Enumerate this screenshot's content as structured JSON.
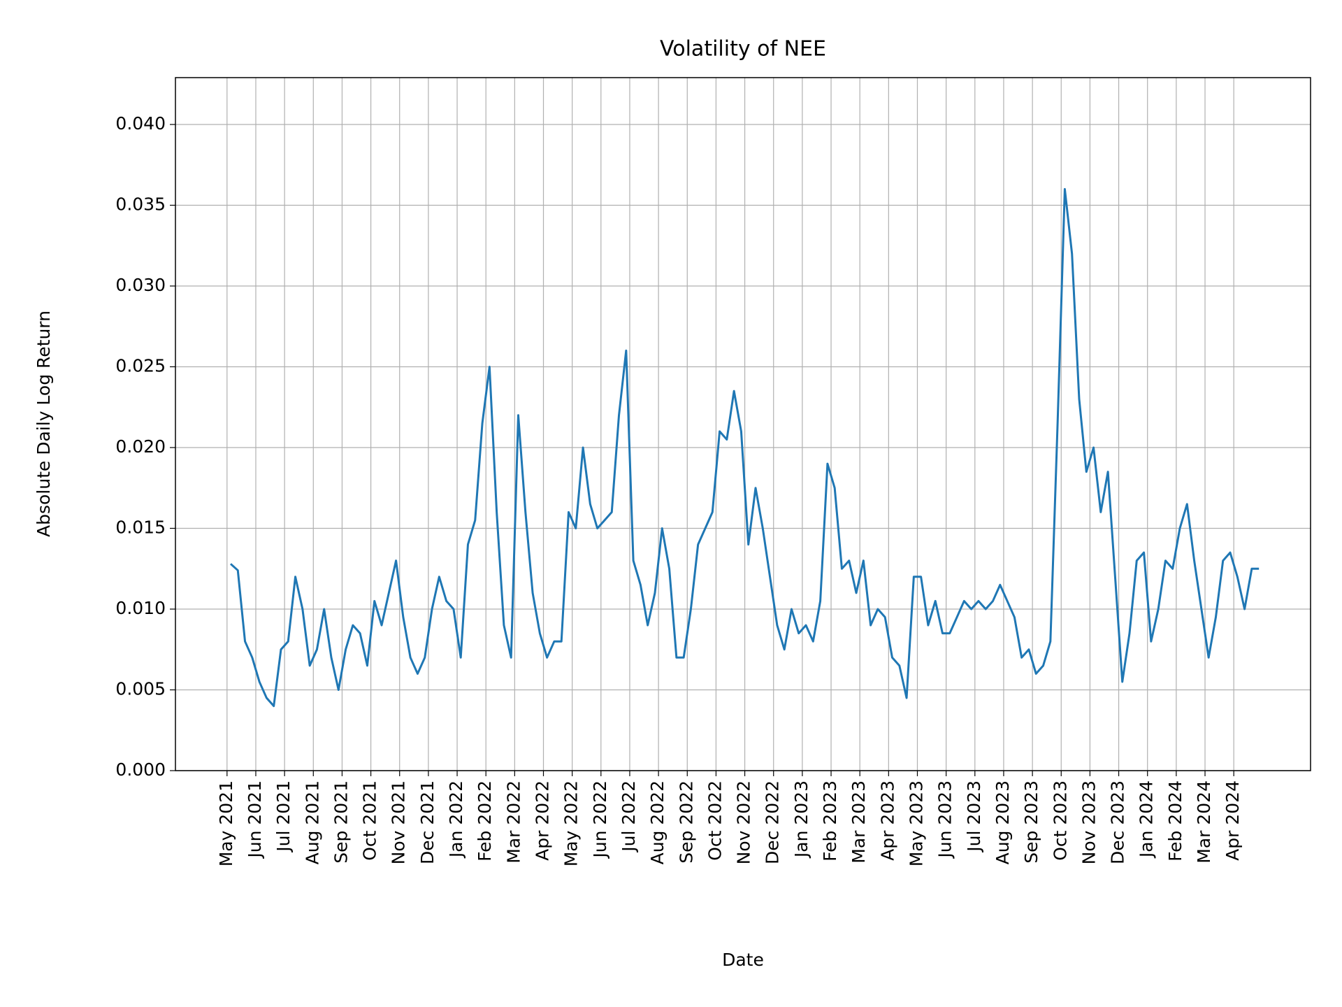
{
  "chart_data": {
    "type": "line",
    "title": "Volatility of NEE",
    "x_label": "Date",
    "y_label": "Absolute Daily Log Return",
    "color": "#1f77b4",
    "grid": true,
    "x": [
      "2021-05",
      "2021-05",
      "2021-05",
      "2021-05",
      "2021-06",
      "2021-06",
      "2021-06",
      "2021-06",
      "2021-07",
      "2021-07",
      "2021-07",
      "2021-07",
      "2021-08",
      "2021-08",
      "2021-08",
      "2021-08",
      "2021-09",
      "2021-09",
      "2021-09",
      "2021-09",
      "2021-10",
      "2021-10",
      "2021-10",
      "2021-10",
      "2021-11",
      "2021-11",
      "2021-11",
      "2021-11",
      "2021-12",
      "2021-12",
      "2021-12",
      "2021-12",
      "2022-01",
      "2022-01",
      "2022-01",
      "2022-01",
      "2022-02",
      "2022-02",
      "2022-02",
      "2022-02",
      "2022-03",
      "2022-03",
      "2022-03",
      "2022-03",
      "2022-04",
      "2022-04",
      "2022-04",
      "2022-04",
      "2022-05",
      "2022-05",
      "2022-05",
      "2022-05",
      "2022-06",
      "2022-06",
      "2022-06",
      "2022-06",
      "2022-07",
      "2022-07",
      "2022-07",
      "2022-07",
      "2022-08",
      "2022-08",
      "2022-08",
      "2022-08",
      "2022-09",
      "2022-09",
      "2022-09",
      "2022-09",
      "2022-10",
      "2022-10",
      "2022-10",
      "2022-10",
      "2022-11",
      "2022-11",
      "2022-11",
      "2022-11",
      "2022-12",
      "2022-12",
      "2022-12",
      "2022-12",
      "2023-01",
      "2023-01",
      "2023-01",
      "2023-01",
      "2023-02",
      "2023-02",
      "2023-02",
      "2023-02",
      "2023-03",
      "2023-03",
      "2023-03",
      "2023-03",
      "2023-04",
      "2023-04",
      "2023-04",
      "2023-04",
      "2023-05",
      "2023-05",
      "2023-05",
      "2023-05",
      "2023-06",
      "2023-06",
      "2023-06",
      "2023-06",
      "2023-07",
      "2023-07",
      "2023-07",
      "2023-07",
      "2023-08",
      "2023-08",
      "2023-08",
      "2023-08",
      "2023-09",
      "2023-09",
      "2023-09",
      "2023-09",
      "2023-10",
      "2023-10",
      "2023-10",
      "2023-10",
      "2023-11",
      "2023-11",
      "2023-11",
      "2023-11",
      "2023-12",
      "2023-12",
      "2023-12",
      "2023-12",
      "2024-01",
      "2024-01",
      "2024-01",
      "2024-01",
      "2024-02",
      "2024-02",
      "2024-02",
      "2024-02",
      "2024-03",
      "2024-03",
      "2024-03",
      "2024-03",
      "2024-04",
      "2024-04",
      "2024-04",
      "2024-04"
    ],
    "values": [
      0.0128,
      0.0124,
      0.008,
      0.007,
      0.0055,
      0.0045,
      0.004,
      0.0075,
      0.008,
      0.012,
      0.01,
      0.0065,
      0.0075,
      0.01,
      0.007,
      0.005,
      0.0075,
      0.009,
      0.0085,
      0.0065,
      0.0105,
      0.009,
      0.011,
      0.013,
      0.0095,
      0.007,
      0.006,
      0.007,
      0.01,
      0.012,
      0.0105,
      0.01,
      0.007,
      0.014,
      0.0155,
      0.0215,
      0.025,
      0.016,
      0.009,
      0.007,
      0.022,
      0.016,
      0.011,
      0.0085,
      0.007,
      0.008,
      0.008,
      0.016,
      0.015,
      0.02,
      0.0165,
      0.015,
      0.0155,
      0.016,
      0.022,
      0.026,
      0.013,
      0.0115,
      0.009,
      0.011,
      0.015,
      0.0125,
      0.007,
      0.007,
      0.01,
      0.014,
      0.015,
      0.016,
      0.021,
      0.0205,
      0.0235,
      0.021,
      0.014,
      0.0175,
      0.015,
      0.012,
      0.009,
      0.0075,
      0.01,
      0.0085,
      0.009,
      0.008,
      0.0105,
      0.019,
      0.0175,
      0.0125,
      0.013,
      0.011,
      0.013,
      0.009,
      0.01,
      0.0095,
      0.007,
      0.0065,
      0.0045,
      0.012,
      0.012,
      0.009,
      0.0105,
      0.0085,
      0.0085,
      0.0095,
      0.0105,
      0.01,
      0.0105,
      0.01,
      0.0105,
      0.0115,
      0.0105,
      0.0095,
      0.007,
      0.0075,
      0.006,
      0.0065,
      0.008,
      0.0215,
      0.036,
      0.032,
      0.023,
      0.0185,
      0.02,
      0.016,
      0.0185,
      0.012,
      0.0055,
      0.0085,
      0.013,
      0.0135,
      0.008,
      0.01,
      0.013,
      0.0125,
      0.015,
      0.0165,
      0.013,
      0.01,
      0.007,
      0.0095,
      0.013,
      0.0135,
      0.012,
      0.01,
      0.0125,
      0.0125
    ],
    "ylim": [
      0,
      0.0429
    ],
    "yticks": [
      {
        "value": 0,
        "label": "0.000"
      },
      0.005,
      {
        "value": 0.01,
        "label": "0.010"
      },
      0.015,
      {
        "value": 0.02,
        "label": "0.020"
      },
      0.025,
      {
        "value": 0.03,
        "label": "0.030"
      },
      0.035,
      {
        "value": 0.04,
        "label": "0.040"
      }
    ],
    "xticks": [
      {
        "value": "2021-05",
        "label": "May 2021"
      },
      {
        "value": "2021-06",
        "label": "Jun 2021"
      },
      {
        "value": "2021-07",
        "label": "Jul 2021"
      },
      {
        "value": "2021-08",
        "label": "Aug 2021"
      },
      {
        "value": "2021-09",
        "label": "Sep 2021"
      },
      {
        "value": "2021-10",
        "label": "Oct 2021"
      },
      {
        "value": "2021-11",
        "label": "Nov 2021"
      },
      {
        "value": "2021-12",
        "label": "Dec 2021"
      },
      {
        "value": "2022-01",
        "label": "Jan 2022"
      },
      {
        "value": "2022-02",
        "label": "Feb 2022"
      },
      {
        "value": "2022-03",
        "label": "Mar 2022"
      },
      {
        "value": "2022-04",
        "label": "Apr 2022"
      },
      {
        "value": "2022-05",
        "label": "May 2022"
      },
      {
        "value": "2022-06",
        "label": "Jun 2022"
      },
      {
        "value": "2022-07",
        "label": "Jul 2022"
      },
      {
        "value": "2022-08",
        "label": "Aug 2022"
      },
      {
        "value": "2022-09",
        "label": "Sep 2022"
      },
      {
        "value": "2022-10",
        "label": "Oct 2022"
      },
      {
        "value": "2022-11",
        "label": "Nov 2022"
      },
      {
        "value": "2022-12",
        "label": "Dec 2022"
      },
      {
        "value": "2023-01",
        "label": "Jan 2023"
      },
      {
        "value": "2023-02",
        "label": "Feb 2023"
      },
      {
        "value": "2023-03",
        "label": "Mar 2023"
      },
      {
        "value": "2023-04",
        "label": "Apr 2023"
      },
      {
        "value": "2023-05",
        "label": "May 2023"
      },
      {
        "value": "2023-06",
        "label": "Jun 2023"
      },
      {
        "value": "2023-07",
        "label": "Jul 2023"
      },
      {
        "value": "2023-08",
        "label": "Aug 2023"
      },
      {
        "value": "2023-09",
        "label": "Sep 2023"
      },
      {
        "value": "2023-10",
        "label": "Oct 2023"
      },
      {
        "value": "2023-11",
        "label": "Nov 2023"
      },
      {
        "value": "2023-12",
        "label": "Dec 2023"
      },
      {
        "value": "2024-01",
        "label": "Jan 2024"
      },
      {
        "value": "2024-02",
        "label": "Feb 2024"
      },
      {
        "value": "2024-03",
        "label": "Mar 2024"
      },
      {
        "value": "2024-04",
        "label": "Apr 2024"
      }
    ]
  }
}
